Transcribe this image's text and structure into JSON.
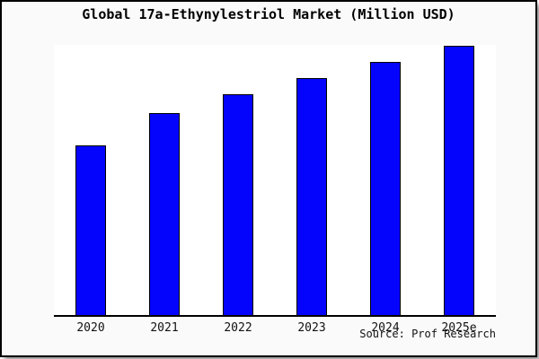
{
  "chart_data": {
    "type": "bar",
    "title": "Global 17a-Ethynylestriol Market (Million USD)",
    "categories": [
      "2020",
      "2021",
      "2022",
      "2023",
      "2024",
      "2025e"
    ],
    "values_relative": [
      63,
      75,
      82,
      88,
      94,
      100
    ],
    "value_note": "no y-axis labels shown; values estimated from bar heights, normalized to 2025e = 100",
    "xlabel": "",
    "ylabel": "",
    "y_axis_visible": false,
    "grid": false,
    "legend": "none",
    "source_label": "Source: Prof Research",
    "bar_color": "#0404fc",
    "bar_border_color": "#000000",
    "plot_bg_color": "#ffffff",
    "canvas_bg_color": "#fafafa",
    "frame_border_color": "#000000"
  }
}
